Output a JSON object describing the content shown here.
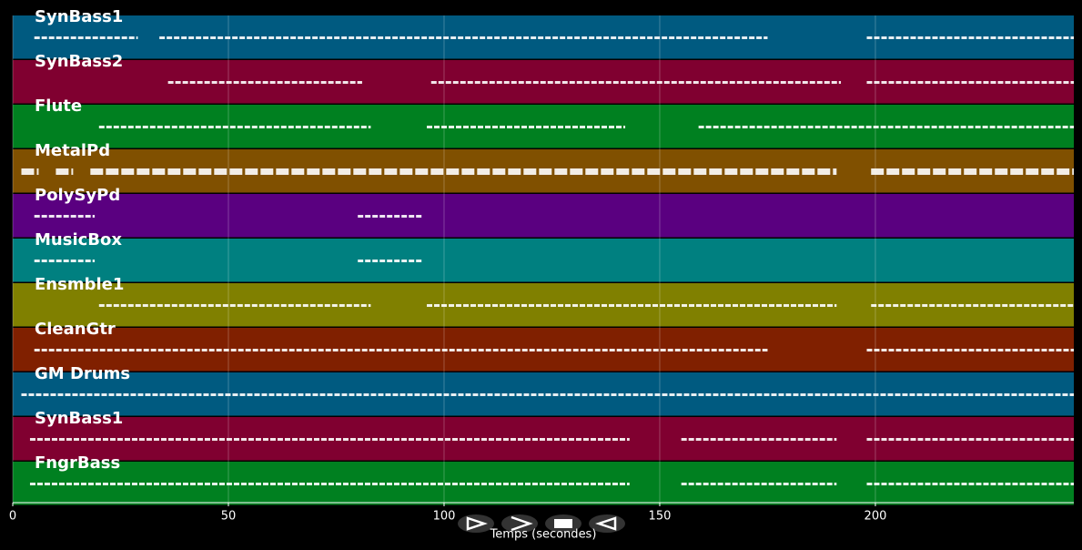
{
  "chart_data": {
    "type": "piano-roll",
    "xlabel": "Temps (secondes)",
    "xlim": [
      0,
      246
    ],
    "xticks": [
      0,
      50,
      100,
      150,
      200
    ],
    "grid": true,
    "series": [
      {
        "name": "SynBass1",
        "color": "#005a80",
        "segments": [
          [
            5,
            29
          ],
          [
            34,
            175
          ],
          [
            198,
            246
          ]
        ]
      },
      {
        "name": "SynBass2",
        "color": "#800030",
        "segments": [
          [
            36,
            81
          ],
          [
            97,
            192
          ],
          [
            198,
            246
          ]
        ]
      },
      {
        "name": "Flute",
        "color": "#008020",
        "segments": [
          [
            20,
            83
          ],
          [
            96,
            142
          ],
          [
            159,
            246
          ]
        ]
      },
      {
        "name": "MetalPd",
        "color": "#805000",
        "segments": [
          [
            2,
            6
          ],
          [
            10,
            14
          ],
          [
            18,
            191
          ],
          [
            199,
            246
          ]
        ]
      },
      {
        "name": "PolySyPd",
        "color": "#5a0080",
        "segments": [
          [
            5,
            19
          ],
          [
            80,
            95
          ]
        ]
      },
      {
        "name": "MusicBox",
        "color": "#008080",
        "segments": [
          [
            5,
            19
          ],
          [
            80,
            95
          ]
        ]
      },
      {
        "name": "Ensmble1",
        "color": "#808000",
        "segments": [
          [
            20,
            83
          ],
          [
            96,
            191
          ],
          [
            199,
            246
          ]
        ]
      },
      {
        "name": "CleanGtr",
        "color": "#802000",
        "segments": [
          [
            5,
            175
          ],
          [
            198,
            246
          ]
        ]
      },
      {
        "name": "GM Drums",
        "color": "#005a80",
        "segments": [
          [
            2,
            246
          ]
        ]
      },
      {
        "name": "SynBass1",
        "color": "#800030",
        "segments": [
          [
            4,
            143
          ],
          [
            155,
            191
          ],
          [
            198,
            246
          ]
        ]
      },
      {
        "name": "FngrBass",
        "color": "#008020",
        "segments": [
          [
            4,
            143
          ],
          [
            155,
            191
          ],
          [
            198,
            246
          ]
        ]
      }
    ]
  }
}
